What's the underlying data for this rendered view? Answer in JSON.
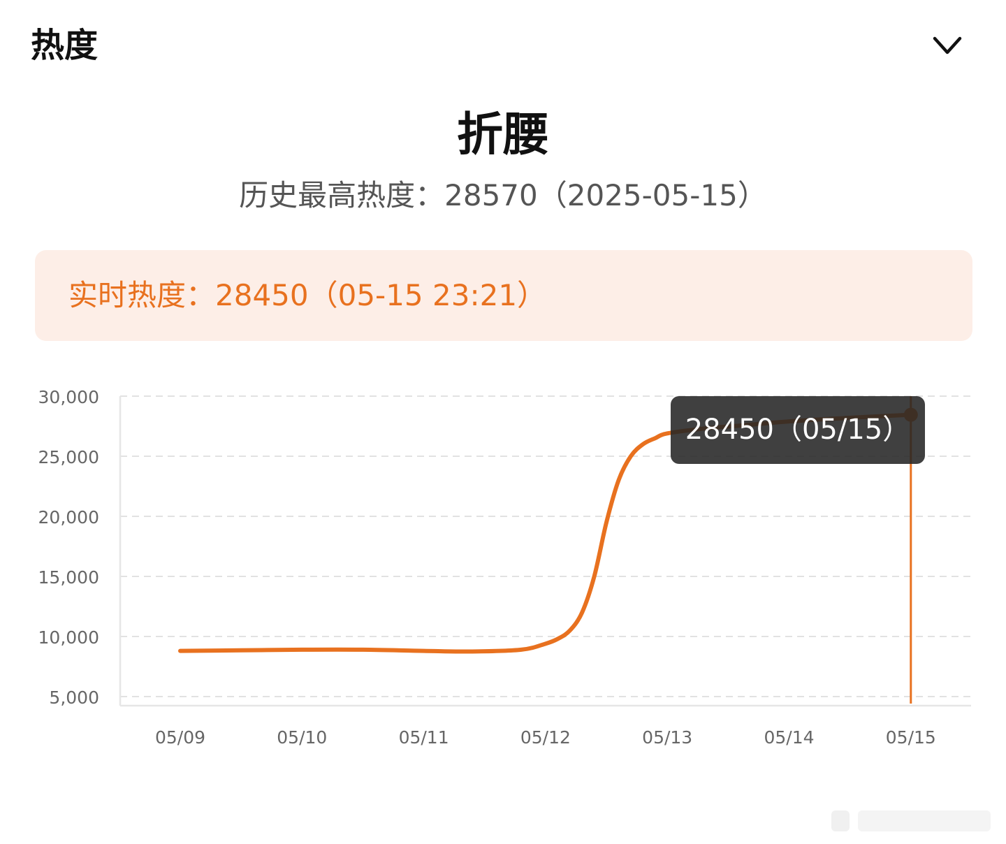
{
  "header": {
    "title": "热度",
    "collapse_icon": "chevron-down-icon"
  },
  "topic": {
    "title": "折腰",
    "peak_text": "历史最高热度：28570（2025-05-15）"
  },
  "realtime": {
    "text": "实时热度：28450（05-15 23:21）"
  },
  "colors": {
    "accent": "#e8711f",
    "realtime_bg": "#fdeee7",
    "tooltip_bg": "#2b2b2b",
    "grid": "#e2e2e2",
    "axis_text": "#666666"
  },
  "chart_data": {
    "type": "line",
    "title": "",
    "xlabel": "",
    "ylabel": "",
    "categories": [
      "05/09",
      "05/10",
      "05/11",
      "05/12",
      "05/13",
      "05/14",
      "05/15"
    ],
    "y_ticks": [
      "5,000",
      "10,000",
      "15,000",
      "20,000",
      "25,000",
      "30,000"
    ],
    "ylim": [
      5000,
      30000
    ],
    "grid": true,
    "series": [
      {
        "x": [
          9.0,
          9.5,
          10.0,
          10.5,
          11.0,
          11.4,
          11.8,
          12.0,
          12.1,
          12.2,
          12.3,
          12.4,
          12.5,
          12.6,
          12.7,
          12.8,
          12.9,
          13.0,
          13.3,
          13.6,
          14.0,
          14.5,
          15.0
        ],
        "values": [
          8800,
          8850,
          8900,
          8900,
          8800,
          8750,
          8900,
          9400,
          9800,
          10500,
          12000,
          15000,
          19500,
          23000,
          25000,
          26000,
          26500,
          26900,
          27300,
          27550,
          27900,
          28200,
          28450
        ]
      }
    ],
    "tooltip": {
      "text": "28450（05/15）",
      "x": 15.0,
      "value": 28450
    }
  }
}
